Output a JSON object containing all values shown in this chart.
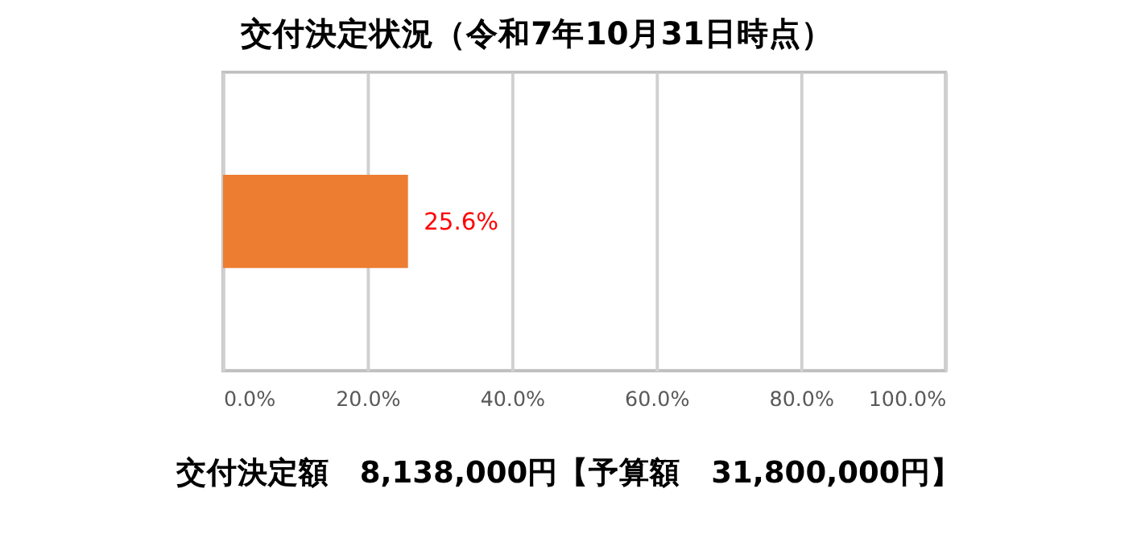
{
  "chart_data": {
    "type": "bar",
    "orientation": "horizontal",
    "title": "交付決定状況（令和7年10月31日時点）",
    "categories": [
      null
    ],
    "values": [
      25.6
    ],
    "color": "#ed7d31",
    "value_labels": [
      "25.6%"
    ],
    "xlim": [
      0,
      100
    ],
    "xticks": [
      {
        "value": 0,
        "label": "0.0%"
      },
      {
        "value": 20,
        "label": "20.0%"
      },
      {
        "value": 40,
        "label": "40.0%"
      },
      {
        "value": 60,
        "label": "60.0%"
      },
      {
        "value": 80,
        "label": "80.0%"
      },
      {
        "value": 100,
        "label": "100.0%"
      }
    ],
    "grid": "x",
    "annotations": [
      "交付決定額　8,138,000円【予算額　31,800,000円】"
    ]
  }
}
